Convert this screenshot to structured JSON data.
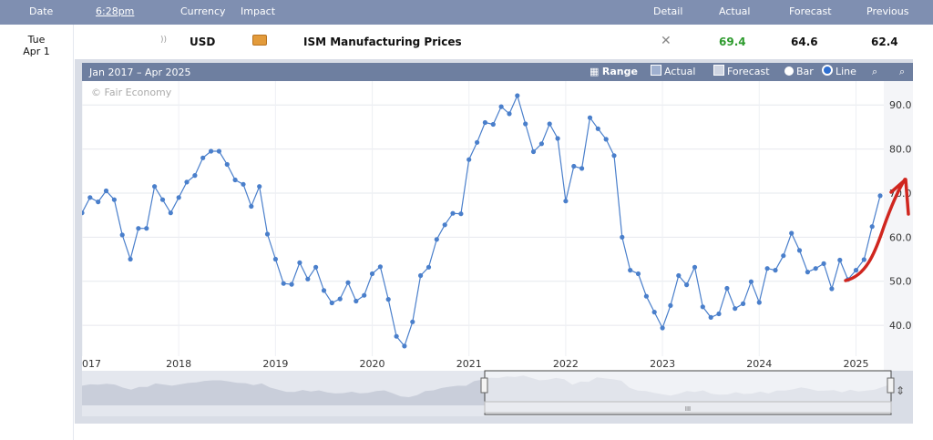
{
  "header": {
    "date": "Date",
    "time": "6:28pm",
    "currency": "Currency",
    "impact": "Impact",
    "detail": "Detail",
    "actual": "Actual",
    "forecast": "Forecast",
    "previous": "Previous"
  },
  "event": {
    "day": "Tue",
    "date": "Apr 1",
    "currency": "USD",
    "name": "ISM Manufacturing Prices",
    "actual": "69.4",
    "forecast": "64.6",
    "previous": "62.4",
    "actual_color": "#2e9b2e",
    "impact_color": "#e39b3b"
  },
  "chart_toolbar": {
    "range_text": "Jan 2017 – Apr 2025",
    "range_button": "Range",
    "actual_toggle": "Actual",
    "forecast_toggle": "Forecast",
    "bar_option": "Bar",
    "line_option": "Line"
  },
  "chart_data": {
    "type": "line",
    "watermark": "© Fair Economy",
    "x_ticks": [
      "017",
      "2018",
      "2019",
      "2020",
      "2021",
      "2022",
      "2023",
      "2024",
      "2025"
    ],
    "y_ticks": [
      "40.0",
      "50.0",
      "60.0",
      "70.0",
      "80.0",
      "90.0"
    ],
    "ylim": [
      33,
      95
    ],
    "x_start": "2017-01",
    "series": [
      {
        "values": [
          65.5,
          69,
          68,
          70.5,
          68.5,
          60.5,
          55,
          62,
          62,
          71.5,
          68.5,
          65.5,
          69,
          72.5,
          74,
          78,
          79.5,
          79.5,
          76.5,
          73,
          72,
          67,
          71.5,
          60.7,
          55,
          49.5,
          49.3,
          54.2,
          50.5,
          53.2,
          47.9,
          45.1,
          46,
          49.7,
          45.5,
          46.8,
          51.7,
          53.3,
          45.9,
          37.5,
          35.3,
          40.8,
          51.3,
          53.2,
          59.5,
          62.8,
          65.4,
          65.3,
          77.6,
          81.5,
          86,
          85.6,
          89.6,
          88,
          92.1,
          85.7,
          79.4,
          81.2,
          85.7,
          82.4,
          68.2,
          76.1,
          75.6,
          87.1,
          84.6,
          82.2,
          78.5,
          60,
          52.5,
          51.7,
          46.6,
          43,
          39.4,
          44.5,
          51.3,
          49.2,
          53.2,
          44.2,
          41.8,
          42.6,
          48.4,
          43.8,
          44.9,
          49.9,
          45.2,
          52.9,
          52.5,
          55.8,
          60.9,
          57,
          52.1,
          52.9,
          54,
          48.3,
          54.8,
          50.4,
          52.5,
          54.9,
          62.4,
          69.4
        ],
        "color": "#4a7fcb"
      }
    ],
    "grid": true
  },
  "annotation": {
    "arrow_color": "#d0261f"
  }
}
